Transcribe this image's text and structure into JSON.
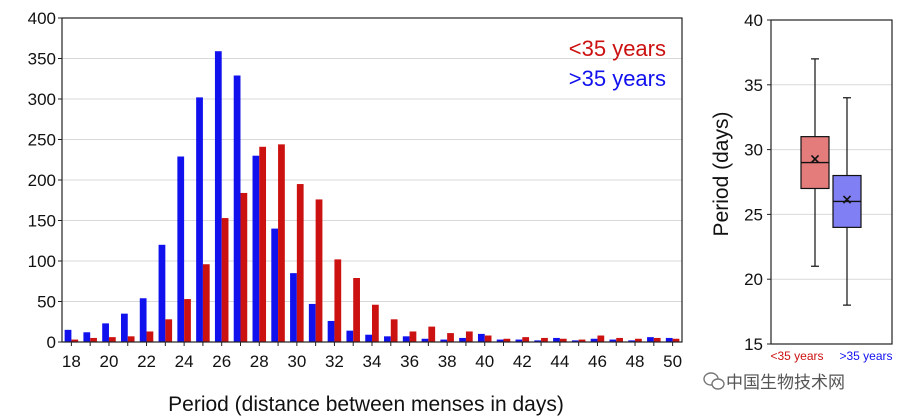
{
  "chart_data": [
    {
      "type": "bar",
      "xlabel": "Period (distance between menses in days)",
      "ylabel": "",
      "x": [
        18,
        19,
        20,
        21,
        22,
        23,
        24,
        25,
        26,
        27,
        28,
        29,
        30,
        31,
        32,
        33,
        34,
        35,
        36,
        37,
        38,
        39,
        40,
        41,
        42,
        43,
        44,
        45,
        46,
        47,
        48,
        49,
        50
      ],
      "xticks": [
        18,
        20,
        22,
        24,
        26,
        28,
        30,
        32,
        34,
        36,
        38,
        40,
        42,
        44,
        46,
        48,
        50
      ],
      "yticks": [
        0,
        50,
        100,
        150,
        200,
        250,
        300,
        350,
        400
      ],
      "ylim": [
        0,
        400
      ],
      "xlim": [
        17.5,
        50.5
      ],
      "grid": true,
      "legend_position": "top-right",
      "series": [
        {
          "name": "<35 years",
          "color": "#cc1111",
          "values": [
            3,
            5,
            6,
            7,
            13,
            28,
            53,
            96,
            153,
            184,
            241,
            244,
            195,
            176,
            102,
            79,
            46,
            28,
            13,
            19,
            11,
            13,
            8,
            4,
            6,
            5,
            4,
            3,
            8,
            5,
            4,
            5,
            4
          ]
        },
        {
          "name": ">35 years",
          "color": "#1111ee",
          "values": [
            15,
            12,
            23,
            35,
            54,
            120,
            229,
            302,
            359,
            329,
            230,
            140,
            85,
            47,
            26,
            14,
            9,
            7,
            7,
            4,
            3,
            5,
            10,
            3,
            3,
            2,
            5,
            2,
            4,
            3,
            2,
            6,
            5
          ]
        }
      ]
    },
    {
      "type": "box",
      "ylabel": "Period (days)",
      "ylim": [
        15,
        40
      ],
      "yticks": [
        15,
        20,
        25,
        30,
        35,
        40
      ],
      "grid": true,
      "categories": [
        "<35 years",
        ">35 years"
      ],
      "boxes": [
        {
          "name": "<35 years",
          "whisker_low": 21,
          "q1": 27,
          "median": 29,
          "mean": 29.3,
          "q3": 31,
          "whisker_high": 37,
          "fill": "#e47c7c",
          "label_color": "#cc1111"
        },
        {
          "name": ">35 years",
          "whisker_low": 18,
          "q1": 24,
          "median": 26,
          "mean": 26.2,
          "q3": 28,
          "whisker_high": 34,
          "fill": "#8080f4",
          "label_color": "#1111ee"
        }
      ]
    }
  ],
  "watermark": {
    "text": "中国生物技术网",
    "icon": "wechat-icon"
  }
}
